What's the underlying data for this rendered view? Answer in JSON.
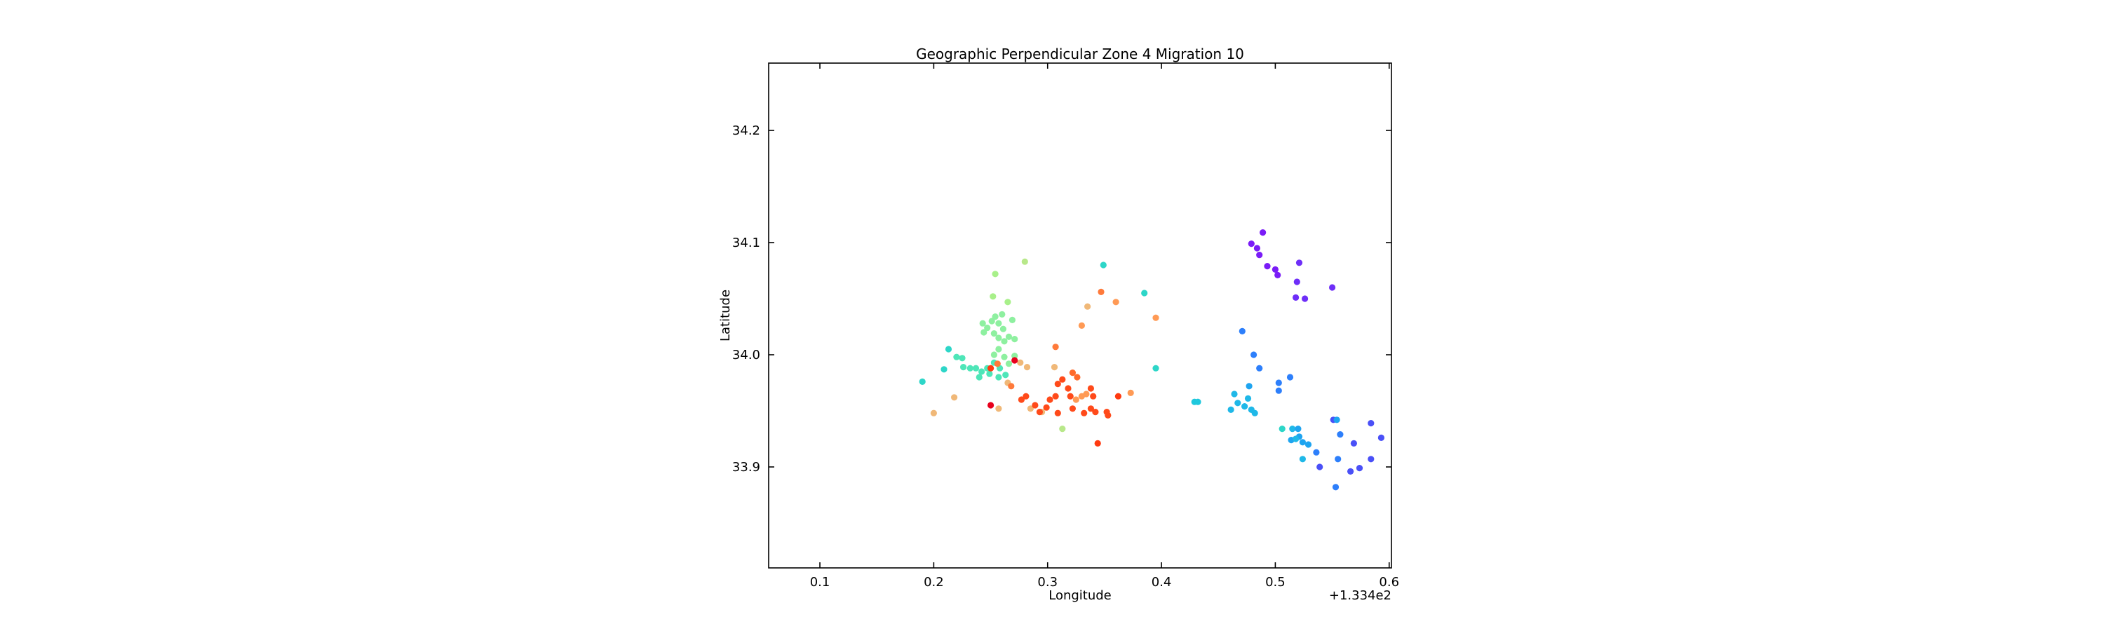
{
  "chart_data": {
    "type": "scatter",
    "title": "Geographic Perpendicular Zone 4 Migration 10",
    "xlabel": "Longitude",
    "ylabel": "Latitude",
    "x_offset_label": "+1.334e2",
    "x_offset": 133.4,
    "xlim": [
      0.055,
      0.602
    ],
    "ylim": [
      33.81,
      34.26
    ],
    "xticks": [
      0.1,
      0.2,
      0.3,
      0.4,
      0.5,
      0.6
    ],
    "xtick_labels": [
      "0.1",
      "0.2",
      "0.3",
      "0.4",
      "0.5",
      "0.6"
    ],
    "yticks": [
      33.9,
      34.0,
      34.1,
      34.2
    ],
    "ytick_labels": [
      "33.9",
      "34.0",
      "34.1",
      "34.2"
    ],
    "grid": false,
    "legend": "none",
    "colormap": "rainbow",
    "points": [
      {
        "x": 0.479,
        "y": 34.099,
        "c": "#7a1cf7"
      },
      {
        "x": 0.484,
        "y": 34.095,
        "c": "#7a1cf7"
      },
      {
        "x": 0.489,
        "y": 34.109,
        "c": "#7a1cf7"
      },
      {
        "x": 0.486,
        "y": 34.089,
        "c": "#7a1cf7"
      },
      {
        "x": 0.493,
        "y": 34.079,
        "c": "#7a1cf7"
      },
      {
        "x": 0.5,
        "y": 34.076,
        "c": "#7a1cf7"
      },
      {
        "x": 0.521,
        "y": 34.082,
        "c": "#6e2ef8"
      },
      {
        "x": 0.519,
        "y": 34.065,
        "c": "#6e2ef8"
      },
      {
        "x": 0.518,
        "y": 34.051,
        "c": "#6e2ef8"
      },
      {
        "x": 0.526,
        "y": 34.05,
        "c": "#6e2ef8"
      },
      {
        "x": 0.55,
        "y": 34.06,
        "c": "#6e2ef8"
      },
      {
        "x": 0.502,
        "y": 34.071,
        "c": "#7a1cf7"
      },
      {
        "x": 0.471,
        "y": 34.021,
        "c": "#2d7ffb"
      },
      {
        "x": 0.481,
        "y": 34.0,
        "c": "#2d7ffb"
      },
      {
        "x": 0.486,
        "y": 33.988,
        "c": "#2d7ffb"
      },
      {
        "x": 0.513,
        "y": 33.98,
        "c": "#2d7ffb"
      },
      {
        "x": 0.503,
        "y": 33.975,
        "c": "#2d7ffb"
      },
      {
        "x": 0.503,
        "y": 33.968,
        "c": "#2d7ffb"
      },
      {
        "x": 0.477,
        "y": 33.972,
        "c": "#1ea4f0"
      },
      {
        "x": 0.464,
        "y": 33.965,
        "c": "#1fb8e8"
      },
      {
        "x": 0.467,
        "y": 33.957,
        "c": "#1fb8e8"
      },
      {
        "x": 0.461,
        "y": 33.951,
        "c": "#1fb8e8"
      },
      {
        "x": 0.473,
        "y": 33.954,
        "c": "#1fb8e8"
      },
      {
        "x": 0.476,
        "y": 33.961,
        "c": "#1fb8e8"
      },
      {
        "x": 0.479,
        "y": 33.951,
        "c": "#1fb8e8"
      },
      {
        "x": 0.482,
        "y": 33.948,
        "c": "#1fb8e8"
      },
      {
        "x": 0.429,
        "y": 33.958,
        "c": "#1fc8dd"
      },
      {
        "x": 0.432,
        "y": 33.958,
        "c": "#1fc8dd"
      },
      {
        "x": 0.506,
        "y": 33.934,
        "c": "#2dd6c8"
      },
      {
        "x": 0.515,
        "y": 33.934,
        "c": "#1fb8e8"
      },
      {
        "x": 0.52,
        "y": 33.934,
        "c": "#1ea4f0"
      },
      {
        "x": 0.514,
        "y": 33.924,
        "c": "#1ea4f0"
      },
      {
        "x": 0.521,
        "y": 33.927,
        "c": "#1ea4f0"
      },
      {
        "x": 0.524,
        "y": 33.922,
        "c": "#1ea4f0"
      },
      {
        "x": 0.529,
        "y": 33.92,
        "c": "#1ea4f0"
      },
      {
        "x": 0.518,
        "y": 33.925,
        "c": "#1fb8e8"
      },
      {
        "x": 0.524,
        "y": 33.907,
        "c": "#1fb8e8"
      },
      {
        "x": 0.536,
        "y": 33.913,
        "c": "#2d7ffb"
      },
      {
        "x": 0.539,
        "y": 33.9,
        "c": "#4a50f7"
      },
      {
        "x": 0.551,
        "y": 33.942,
        "c": "#4a50f7"
      },
      {
        "x": 0.554,
        "y": 33.942,
        "c": "#1ea4f0"
      },
      {
        "x": 0.557,
        "y": 33.929,
        "c": "#2d7ffb"
      },
      {
        "x": 0.555,
        "y": 33.907,
        "c": "#2d7ffb"
      },
      {
        "x": 0.553,
        "y": 33.882,
        "c": "#2d7ffb"
      },
      {
        "x": 0.566,
        "y": 33.896,
        "c": "#4a50f7"
      },
      {
        "x": 0.574,
        "y": 33.899,
        "c": "#4a50f7"
      },
      {
        "x": 0.569,
        "y": 33.921,
        "c": "#4a50f7"
      },
      {
        "x": 0.584,
        "y": 33.939,
        "c": "#4a50f7"
      },
      {
        "x": 0.584,
        "y": 33.907,
        "c": "#4a50f7"
      },
      {
        "x": 0.593,
        "y": 33.926,
        "c": "#4a50f7"
      },
      {
        "x": 0.349,
        "y": 34.08,
        "c": "#2dd6c8"
      },
      {
        "x": 0.385,
        "y": 34.055,
        "c": "#2dd6c8"
      },
      {
        "x": 0.395,
        "y": 33.988,
        "c": "#2dd6c8"
      },
      {
        "x": 0.19,
        "y": 33.976,
        "c": "#2dd6c8"
      },
      {
        "x": 0.209,
        "y": 33.987,
        "c": "#2dd6c8"
      },
      {
        "x": 0.213,
        "y": 34.005,
        "c": "#2dd6c8"
      },
      {
        "x": 0.22,
        "y": 33.998,
        "c": "#4ee6b8"
      },
      {
        "x": 0.225,
        "y": 33.997,
        "c": "#4ee6b8"
      },
      {
        "x": 0.226,
        "y": 33.989,
        "c": "#4ee6b8"
      },
      {
        "x": 0.232,
        "y": 33.988,
        "c": "#4ee6b8"
      },
      {
        "x": 0.237,
        "y": 33.988,
        "c": "#4ee6b8"
      },
      {
        "x": 0.242,
        "y": 33.985,
        "c": "#4ee6b8"
      },
      {
        "x": 0.24,
        "y": 33.98,
        "c": "#4ee6b8"
      },
      {
        "x": 0.249,
        "y": 33.983,
        "c": "#4ee6b8"
      },
      {
        "x": 0.247,
        "y": 33.988,
        "c": "#4ee6b8"
      },
      {
        "x": 0.253,
        "y": 33.993,
        "c": "#4ee6b8"
      },
      {
        "x": 0.258,
        "y": 33.988,
        "c": "#4ee6b8"
      },
      {
        "x": 0.257,
        "y": 33.98,
        "c": "#4ee6b8"
      },
      {
        "x": 0.263,
        "y": 33.982,
        "c": "#4ee6b8"
      },
      {
        "x": 0.243,
        "y": 34.028,
        "c": "#8ef0a0"
      },
      {
        "x": 0.247,
        "y": 34.024,
        "c": "#8ef0a0"
      },
      {
        "x": 0.244,
        "y": 34.02,
        "c": "#8ef0a0"
      },
      {
        "x": 0.251,
        "y": 34.03,
        "c": "#8ef0a0"
      },
      {
        "x": 0.254,
        "y": 34.034,
        "c": "#8ef0a0"
      },
      {
        "x": 0.257,
        "y": 34.028,
        "c": "#8ef0a0"
      },
      {
        "x": 0.253,
        "y": 34.019,
        "c": "#8ef0a0"
      },
      {
        "x": 0.257,
        "y": 34.015,
        "c": "#8ef0a0"
      },
      {
        "x": 0.261,
        "y": 34.023,
        "c": "#8ef0a0"
      },
      {
        "x": 0.262,
        "y": 34.012,
        "c": "#8ef0a0"
      },
      {
        "x": 0.266,
        "y": 34.016,
        "c": "#8ef0a0"
      },
      {
        "x": 0.271,
        "y": 34.014,
        "c": "#8ef0a0"
      },
      {
        "x": 0.269,
        "y": 34.031,
        "c": "#8ef0a0"
      },
      {
        "x": 0.26,
        "y": 34.036,
        "c": "#8ef0a0"
      },
      {
        "x": 0.252,
        "y": 34.052,
        "c": "#a8f08a"
      },
      {
        "x": 0.265,
        "y": 34.047,
        "c": "#a8f08a"
      },
      {
        "x": 0.254,
        "y": 34.072,
        "c": "#a8f08a"
      },
      {
        "x": 0.28,
        "y": 34.083,
        "c": "#b8e88a"
      },
      {
        "x": 0.253,
        "y": 34.0,
        "c": "#8ef0a0"
      },
      {
        "x": 0.257,
        "y": 34.005,
        "c": "#8ef0a0"
      },
      {
        "x": 0.262,
        "y": 33.998,
        "c": "#8ef0a0"
      },
      {
        "x": 0.266,
        "y": 33.992,
        "c": "#8ef0a0"
      },
      {
        "x": 0.271,
        "y": 33.999,
        "c": "#8ef0a0"
      },
      {
        "x": 0.313,
        "y": 33.934,
        "c": "#b8e88a"
      },
      {
        "x": 0.2,
        "y": 33.948,
        "c": "#f0b878"
      },
      {
        "x": 0.218,
        "y": 33.962,
        "c": "#f0b878"
      },
      {
        "x": 0.257,
        "y": 33.952,
        "c": "#f0b878"
      },
      {
        "x": 0.265,
        "y": 33.975,
        "c": "#f0b878"
      },
      {
        "x": 0.276,
        "y": 33.993,
        "c": "#f0b878"
      },
      {
        "x": 0.282,
        "y": 33.989,
        "c": "#f0b878"
      },
      {
        "x": 0.306,
        "y": 33.989,
        "c": "#f0b878"
      },
      {
        "x": 0.285,
        "y": 33.952,
        "c": "#f0b878"
      },
      {
        "x": 0.295,
        "y": 33.949,
        "c": "#f0b878"
      },
      {
        "x": 0.335,
        "y": 34.043,
        "c": "#f0b878"
      },
      {
        "x": 0.347,
        "y": 34.056,
        "c": "#ff7a3a"
      },
      {
        "x": 0.36,
        "y": 34.047,
        "c": "#ff9a55"
      },
      {
        "x": 0.395,
        "y": 34.033,
        "c": "#ff9a55"
      },
      {
        "x": 0.33,
        "y": 34.026,
        "c": "#ff9a55"
      },
      {
        "x": 0.307,
        "y": 34.007,
        "c": "#ff7a3a"
      },
      {
        "x": 0.373,
        "y": 33.966,
        "c": "#ff9a55"
      },
      {
        "x": 0.25,
        "y": 33.988,
        "c": "#ff3a10"
      },
      {
        "x": 0.256,
        "y": 33.992,
        "c": "#ff7a3a"
      },
      {
        "x": 0.268,
        "y": 33.972,
        "c": "#ff7a3a"
      },
      {
        "x": 0.271,
        "y": 33.995,
        "c": "#e8001c"
      },
      {
        "x": 0.25,
        "y": 33.955,
        "c": "#e8001c"
      },
      {
        "x": 0.277,
        "y": 33.96,
        "c": "#ff4a1a"
      },
      {
        "x": 0.281,
        "y": 33.963,
        "c": "#ff4a1a"
      },
      {
        "x": 0.289,
        "y": 33.955,
        "c": "#ff4a1a"
      },
      {
        "x": 0.293,
        "y": 33.949,
        "c": "#ff4a1a"
      },
      {
        "x": 0.299,
        "y": 33.953,
        "c": "#ff4a1a"
      },
      {
        "x": 0.302,
        "y": 33.96,
        "c": "#ff4a1a"
      },
      {
        "x": 0.307,
        "y": 33.963,
        "c": "#ff4a1a"
      },
      {
        "x": 0.309,
        "y": 33.948,
        "c": "#ff4a1a"
      },
      {
        "x": 0.309,
        "y": 33.974,
        "c": "#ff4a1a"
      },
      {
        "x": 0.313,
        "y": 33.978,
        "c": "#ff4a1a"
      },
      {
        "x": 0.318,
        "y": 33.97,
        "c": "#ff4a1a"
      },
      {
        "x": 0.322,
        "y": 33.984,
        "c": "#ff6a2a"
      },
      {
        "x": 0.326,
        "y": 33.98,
        "c": "#ff6a2a"
      },
      {
        "x": 0.32,
        "y": 33.963,
        "c": "#ff4a1a"
      },
      {
        "x": 0.325,
        "y": 33.96,
        "c": "#ff9a55"
      },
      {
        "x": 0.33,
        "y": 33.963,
        "c": "#ff9a55"
      },
      {
        "x": 0.334,
        "y": 33.965,
        "c": "#ff9a55"
      },
      {
        "x": 0.338,
        "y": 33.97,
        "c": "#ff4a1a"
      },
      {
        "x": 0.34,
        "y": 33.963,
        "c": "#ff4a1a"
      },
      {
        "x": 0.332,
        "y": 33.948,
        "c": "#ff4a1a"
      },
      {
        "x": 0.338,
        "y": 33.952,
        "c": "#ff4a1a"
      },
      {
        "x": 0.342,
        "y": 33.949,
        "c": "#ff4a1a"
      },
      {
        "x": 0.322,
        "y": 33.952,
        "c": "#ff4a1a"
      },
      {
        "x": 0.353,
        "y": 33.946,
        "c": "#ff4a1a"
      },
      {
        "x": 0.352,
        "y": 33.949,
        "c": "#ff4a1a"
      },
      {
        "x": 0.362,
        "y": 33.963,
        "c": "#ff3a10"
      },
      {
        "x": 0.344,
        "y": 33.921,
        "c": "#ff3a10"
      }
    ]
  }
}
